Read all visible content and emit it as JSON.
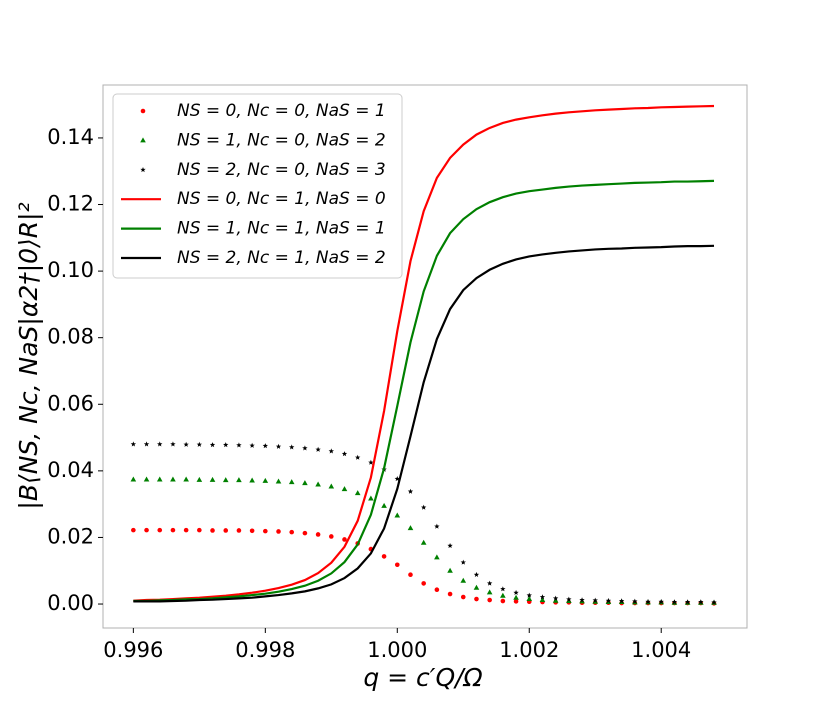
{
  "chart_data": {
    "type": "line",
    "x_label": "q = c′Q/Ω",
    "y_label": "|B⟨NS, Nc, NaS|α2†|0⟩R|²",
    "xlim": [
      0.99554,
      1.0053
    ],
    "ylim": [
      -0.0072,
      0.1559
    ],
    "xticks": [
      0.996,
      0.998,
      {
        "value": 1,
        "label": "1.000"
      },
      1.002,
      1.004
    ],
    "yticks": [
      {
        "value": 0,
        "label": "0.00"
      },
      0.02,
      0.04,
      0.06,
      0.08,
      {
        "value": 0.1,
        "label": "0.10"
      },
      0.12,
      0.14
    ],
    "legend": "upper left",
    "x": [
      0.996,
      0.9962,
      0.9964,
      0.9966,
      0.9968,
      0.997,
      0.9972,
      0.9974,
      0.9976,
      0.9978,
      0.998,
      0.9982,
      0.9984,
      0.9986,
      0.9988,
      0.999,
      0.9992,
      0.9994,
      0.9996,
      0.9998,
      1,
      1.0002,
      1.0004,
      1.0006,
      1.0008,
      1.001,
      1.0012,
      1.0014,
      1.0016,
      1.0018,
      1.002,
      1.0022,
      1.0024,
      1.0026,
      1.0028,
      1.003,
      1.0032,
      1.0034,
      1.0036,
      1.0038,
      1.004,
      1.0042,
      1.0044,
      1.0046,
      1.0048
    ],
    "series": [
      {
        "name": "NS = 0, Nc = 0, NaS = 1",
        "color": "#ff0000",
        "mode": "markers",
        "marker": "circle",
        "values": [
          0.0222,
          0.0222,
          0.0222,
          0.0222,
          0.0222,
          0.0222,
          0.0221,
          0.0221,
          0.0221,
          0.022,
          0.0219,
          0.0218,
          0.0216,
          0.0213,
          0.0209,
          0.0203,
          0.0194,
          0.0182,
          0.0165,
          0.0143,
          0.0118,
          0.0088,
          0.0062,
          0.0043,
          0.003,
          0.0021,
          0.0015,
          0.0012,
          0.0009,
          0.0008,
          0.0007,
          0.0006,
          0.0005,
          0.0005,
          0.0004,
          0.0004,
          0.0004,
          0.0003,
          0.0003,
          0.0003,
          0.0003,
          0.0003,
          0.0003,
          0.0003,
          0.0002
        ]
      },
      {
        "name": "NS = 1, Nc = 0, NaS = 2",
        "color": "#008000",
        "mode": "markers",
        "marker": "triangle",
        "values": [
          0.0374,
          0.0374,
          0.0374,
          0.0374,
          0.0374,
          0.0373,
          0.0373,
          0.0372,
          0.0372,
          0.0371,
          0.037,
          0.0368,
          0.0366,
          0.0363,
          0.0359,
          0.0353,
          0.0345,
          0.0333,
          0.0317,
          0.0295,
          0.0266,
          0.0228,
          0.0184,
          0.014,
          0.01,
          0.007,
          0.0049,
          0.0035,
          0.0025,
          0.0019,
          0.0015,
          0.0012,
          0.001,
          0.0009,
          0.0008,
          0.0007,
          0.0006,
          0.0006,
          0.0005,
          0.0005,
          0.0005,
          0.0004,
          0.0004,
          0.0004,
          0.0004
        ]
      },
      {
        "name": "NS = 2, Nc = 0, NaS = 3",
        "color": "#000000",
        "mode": "markers",
        "marker": "star",
        "values": [
          0.048,
          0.048,
          0.048,
          0.048,
          0.0479,
          0.0479,
          0.0478,
          0.0478,
          0.0477,
          0.0476,
          0.0475,
          0.0473,
          0.0471,
          0.0468,
          0.0464,
          0.0459,
          0.0451,
          0.044,
          0.0425,
          0.0404,
          0.0376,
          0.0338,
          0.029,
          0.0233,
          0.0175,
          0.0125,
          0.0088,
          0.0062,
          0.0045,
          0.0034,
          0.0026,
          0.0021,
          0.0017,
          0.0014,
          0.0012,
          0.0011,
          0.001,
          0.0009,
          0.0008,
          0.0007,
          0.0007,
          0.0006,
          0.0006,
          0.0006,
          0.0005
        ]
      },
      {
        "name": "NS = 0, Nc = 1, NaS = 0",
        "color": "#ff0000",
        "mode": "lines",
        "values": [
          0.001,
          0.0012,
          0.0013,
          0.0015,
          0.0017,
          0.0019,
          0.0022,
          0.0025,
          0.0029,
          0.0034,
          0.004,
          0.0048,
          0.0058,
          0.0072,
          0.0093,
          0.0124,
          0.0172,
          0.025,
          0.038,
          0.058,
          0.082,
          0.103,
          0.118,
          0.128,
          0.134,
          0.138,
          0.141,
          0.143,
          0.1445,
          0.1455,
          0.1462,
          0.1468,
          0.1473,
          0.1477,
          0.148,
          0.1483,
          0.1485,
          0.1487,
          0.1489,
          0.149,
          0.1492,
          0.1493,
          0.1494,
          0.1495,
          0.1496
        ]
      },
      {
        "name": "NS = 1, Nc = 1, NaS = 1",
        "color": "#008000",
        "mode": "lines",
        "values": [
          0.0009,
          0.0009,
          0.0011,
          0.0012,
          0.0014,
          0.0015,
          0.0017,
          0.002,
          0.0023,
          0.0027,
          0.0031,
          0.0037,
          0.0045,
          0.0055,
          0.007,
          0.0092,
          0.0126,
          0.0179,
          0.0268,
          0.0408,
          0.0595,
          0.0786,
          0.0939,
          0.1046,
          0.1114,
          0.1156,
          0.1186,
          0.1207,
          0.1222,
          0.1233,
          0.124,
          0.1245,
          0.125,
          0.1254,
          0.1257,
          0.1259,
          0.1261,
          0.1263,
          0.1265,
          0.1266,
          0.1267,
          0.1269,
          0.1269,
          0.127,
          0.1271
        ]
      },
      {
        "name": "NS = 2, Nc = 1, NaS = 2",
        "color": "#000000",
        "mode": "lines",
        "values": [
          0.0008,
          0.0008,
          0.0008,
          0.0009,
          0.001,
          0.0012,
          0.0013,
          0.0015,
          0.0017,
          0.0019,
          0.0023,
          0.0027,
          0.0032,
          0.0038,
          0.0047,
          0.0059,
          0.0078,
          0.0107,
          0.0152,
          0.0227,
          0.0346,
          0.0504,
          0.0666,
          0.0796,
          0.0886,
          0.0943,
          0.0979,
          0.1004,
          0.1022,
          0.1035,
          0.1044,
          0.105,
          0.1055,
          0.1059,
          0.1062,
          0.1065,
          0.1067,
          0.1068,
          0.107,
          0.1071,
          0.1072,
          0.1074,
          0.1075,
          0.1075,
          0.1076
        ]
      }
    ]
  }
}
